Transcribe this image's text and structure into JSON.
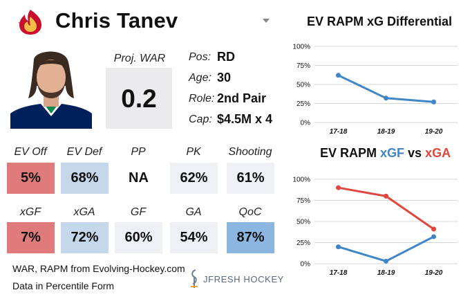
{
  "player": {
    "name": "Chris Tanev"
  },
  "war": {
    "label": "Proj. WAR",
    "value": "0.2"
  },
  "bio": [
    {
      "label": "Pos:",
      "value": "RD"
    },
    {
      "label": "Age:",
      "value": "30"
    },
    {
      "label": "Role:",
      "value": "2nd Pair"
    },
    {
      "label": "Cap:",
      "value": "$4.5M x 4"
    }
  ],
  "metrics_row1": [
    {
      "label": "EV Off",
      "value": "5%",
      "color": "#e07b7b"
    },
    {
      "label": "EV Def",
      "value": "68%",
      "color": "#c4d7eb"
    },
    {
      "label": "PP",
      "value": "NA",
      "color": "#ffffff"
    },
    {
      "label": "PK",
      "value": "62%",
      "color": "#eef0f3"
    },
    {
      "label": "Shooting",
      "value": "61%",
      "color": "#eef0f3"
    }
  ],
  "metrics_row2": [
    {
      "label": "xGF",
      "value": "7%",
      "color": "#e07b7b"
    },
    {
      "label": "xGA",
      "value": "72%",
      "color": "#c4d7eb"
    },
    {
      "label": "GF",
      "value": "60%",
      "color": "#eef0f3"
    },
    {
      "label": "GA",
      "value": "54%",
      "color": "#eef0f3"
    },
    {
      "label": "QoC",
      "value": "87%",
      "color": "#8ab6e0"
    }
  ],
  "footer": {
    "line1": "WAR, RAPM from  Evolving-Hockey.com",
    "line2": "Data in Percentile Form",
    "brand": "JFRESH HOCKEY"
  },
  "colors": {
    "blue_series": "#3f86c9",
    "red_series": "#e0463d",
    "grid": "#d6d6d6"
  },
  "chart_data": [
    {
      "type": "line",
      "title": "EV RAPM xG Differential",
      "categories": [
        "17-18",
        "18-19",
        "19-20"
      ],
      "ylim": [
        0,
        100
      ],
      "yticks": [
        0,
        25,
        50,
        75,
        100
      ],
      "ytick_labels": [
        "0%",
        "25%",
        "50%",
        "75%",
        "100%"
      ],
      "grid": true,
      "series": [
        {
          "values": [
            62,
            32,
            27
          ],
          "color": "#3f86c9"
        }
      ]
    },
    {
      "type": "line",
      "title_parts": [
        {
          "text": "EV RAPM ",
          "color": "#111111"
        },
        {
          "text": "xGF",
          "color": "#3f86c9"
        },
        {
          "text": " vs ",
          "color": "#111111"
        },
        {
          "text": "xGA",
          "color": "#e0463d"
        }
      ],
      "categories": [
        "17-18",
        "18-19",
        "19-20"
      ],
      "ylim": [
        0,
        100
      ],
      "yticks": [
        0,
        25,
        50,
        75,
        100
      ],
      "ytick_labels": [
        "0%",
        "25%",
        "50%",
        "75%",
        "100%"
      ],
      "grid": true,
      "series": [
        {
          "name": "xGF",
          "values": [
            20,
            3,
            32
          ],
          "color": "#3f86c9"
        },
        {
          "name": "xGA",
          "values": [
            90,
            80,
            41
          ],
          "color": "#e0463d"
        }
      ]
    }
  ]
}
